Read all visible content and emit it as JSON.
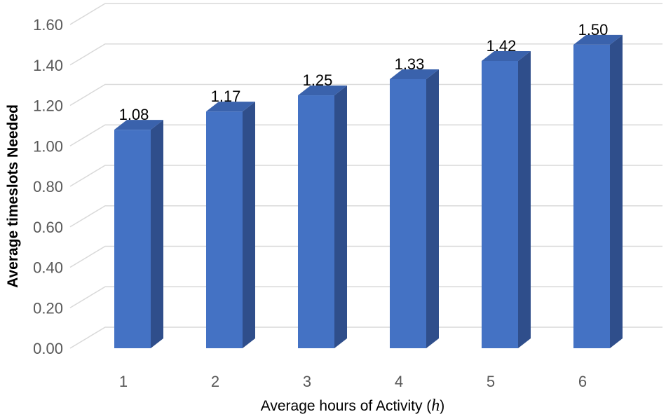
{
  "chart_data": {
    "type": "bar",
    "title": "",
    "categories": [
      "1",
      "2",
      "3",
      "4",
      "5",
      "6"
    ],
    "values": [
      1.08,
      1.17,
      1.25,
      1.33,
      1.42,
      1.5
    ],
    "data_labels": [
      "1.08",
      "1.17",
      "1.25",
      "1.33",
      "1.42",
      "1.50"
    ],
    "y_ticks": [
      "0.00",
      "0.20",
      "0.40",
      "0.60",
      "0.80",
      "1.00",
      "1.20",
      "1.40",
      "1.60"
    ],
    "ylim": [
      0,
      1.6
    ],
    "xlabel": "Average hours of Activity",
    "xlabel_variable": "h",
    "ylabel": "Average timeslots Needed",
    "grid": true,
    "legend": "none",
    "style": "3d-column"
  },
  "colors": {
    "bar_front": "#4472C4",
    "bar_side": "#2F4E8B",
    "bar_top": "#3A62AC",
    "gridline": "#D9D9D9"
  }
}
